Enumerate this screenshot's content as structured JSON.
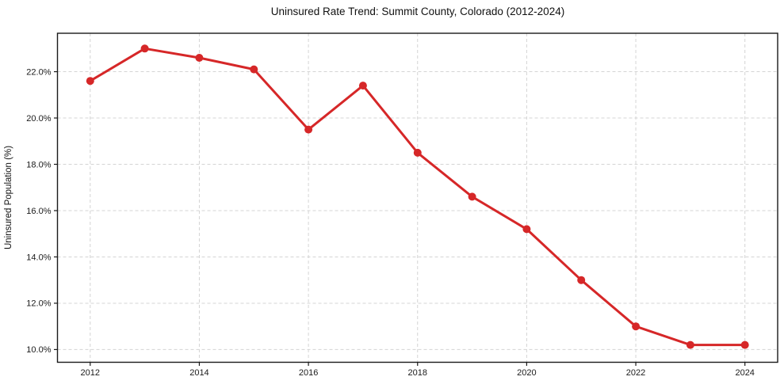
{
  "title": "Uninsured Rate Trend: Summit County, Colorado (2012-2024)",
  "chart_data": {
    "type": "line",
    "title": "Uninsured Rate Trend: Summit County, Colorado (2012-2024)",
    "xlabel": "",
    "ylabel": "Uninsured Population (%)",
    "x": [
      2012,
      2013,
      2014,
      2015,
      2016,
      2017,
      2018,
      2019,
      2020,
      2021,
      2022,
      2023,
      2024
    ],
    "values": [
      21.6,
      23.0,
      22.6,
      22.1,
      19.5,
      21.4,
      18.5,
      16.6,
      15.2,
      13.0,
      11.0,
      10.2,
      10.2
    ],
    "x_ticks": [
      2012,
      2014,
      2016,
      2018,
      2020,
      2022,
      2024
    ],
    "x_tick_labels": [
      "2012",
      "2014",
      "2016",
      "2018",
      "2020",
      "2022",
      "2024"
    ],
    "y_ticks": [
      10,
      12,
      14,
      16,
      18,
      20,
      22
    ],
    "y_tick_labels": [
      "10.0%",
      "12.0%",
      "14.0%",
      "16.0%",
      "18.0%",
      "20.0%",
      "22.0%"
    ],
    "xlim": [
      2011.4,
      2024.6
    ],
    "ylim": [
      9.45,
      23.66
    ],
    "grid": true,
    "grid_style": "dashed",
    "legend": null,
    "colors": {
      "line": "#d62728",
      "marker": "#d62728",
      "grid": "#d4d4d4",
      "axis_border": "#1a1a1a",
      "background": "#ffffff"
    }
  }
}
